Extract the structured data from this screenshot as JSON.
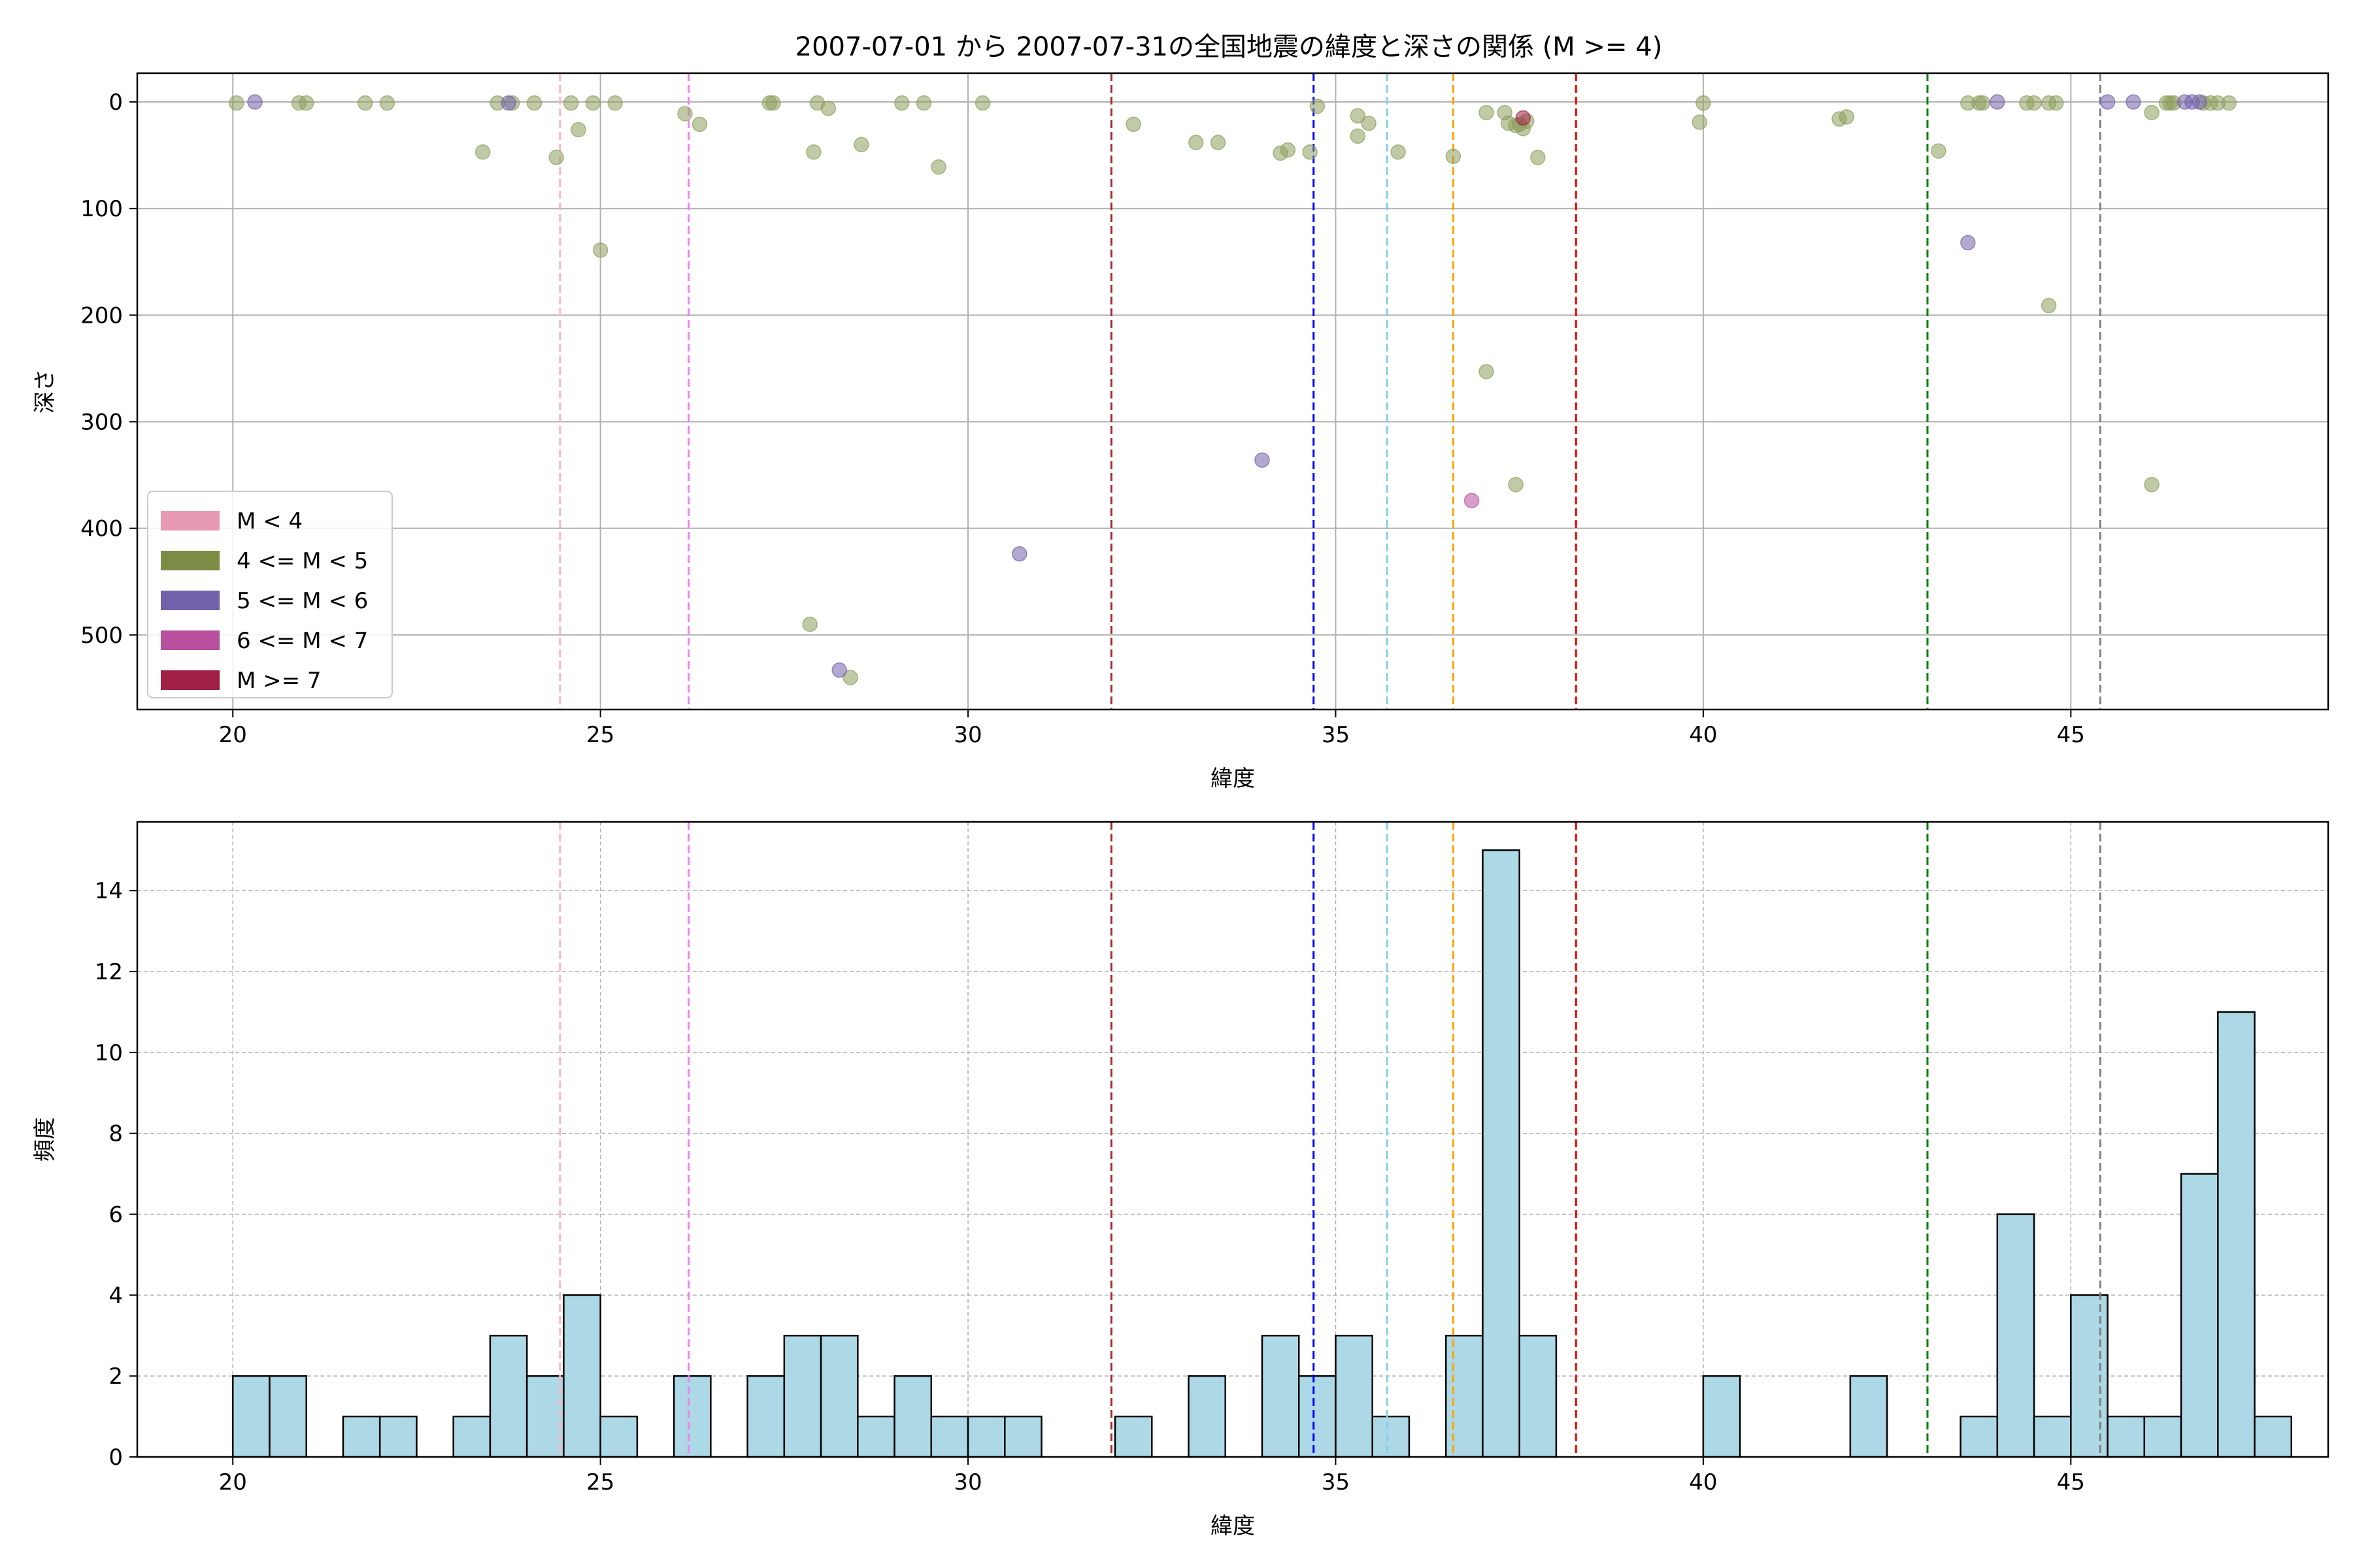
{
  "chart_data": [
    {
      "type": "scatter",
      "title": "2007-07-01 から 2007-07-31の全国地震の緯度と深さの関係 (M >= 4)",
      "xlabel": "緯度",
      "ylabel": "深さ",
      "xlim": [
        18.7,
        48.5
      ],
      "ylim": [
        570,
        -27
      ],
      "y_inverted": true,
      "xticks": [
        20,
        25,
        30,
        35,
        40,
        45
      ],
      "yticks": [
        0,
        100,
        200,
        300,
        400,
        500
      ],
      "grid": true,
      "legend_position": "lower-left",
      "legend": [
        {
          "label": "M < 4",
          "color": "#e89ab5"
        },
        {
          "label": "4 <= M < 5",
          "color": "#7c8c44"
        },
        {
          "label": "5 <= M < 6",
          "color": "#7260aa"
        },
        {
          "label": "6 <= M < 7",
          "color": "#b8509e"
        },
        {
          "label": "M >= 7",
          "color": "#a01f44"
        }
      ],
      "vlines": [
        {
          "x": 24.45,
          "color": "#ffb6c1"
        },
        {
          "x": 26.2,
          "color": "#ee82ee"
        },
        {
          "x": 31.95,
          "color": "#a52a2a"
        },
        {
          "x": 34.7,
          "color": "#0000ff"
        },
        {
          "x": 35.7,
          "color": "#87ceeb"
        },
        {
          "x": 36.6,
          "color": "#ffa500"
        },
        {
          "x": 38.27,
          "color": "#ff0000"
        },
        {
          "x": 43.05,
          "color": "#008000"
        },
        {
          "x": 45.4,
          "color": "#808080"
        }
      ],
      "series": [
        {
          "name": "4 <= M < 5",
          "color": "#8d9e5c",
          "points": [
            [
              20.05,
              1
            ],
            [
              20.9,
              1
            ],
            [
              21.0,
              1
            ],
            [
              21.8,
              1
            ],
            [
              22.1,
              1
            ],
            [
              23.4,
              47
            ],
            [
              23.6,
              1
            ],
            [
              23.8,
              1
            ],
            [
              24.1,
              1
            ],
            [
              24.4,
              52
            ],
            [
              24.6,
              1
            ],
            [
              24.7,
              26
            ],
            [
              24.9,
              1
            ],
            [
              25.0,
              139
            ],
            [
              25.2,
              1
            ],
            [
              26.15,
              11
            ],
            [
              26.35,
              21
            ],
            [
              27.3,
              1
            ],
            [
              27.35,
              1
            ],
            [
              27.85,
              490
            ],
            [
              27.9,
              47
            ],
            [
              27.95,
              1
            ],
            [
              28.1,
              6
            ],
            [
              28.4,
              540
            ],
            [
              28.55,
              40
            ],
            [
              29.1,
              1
            ],
            [
              29.4,
              1
            ],
            [
              29.6,
              61
            ],
            [
              30.2,
              1
            ],
            [
              32.25,
              21
            ],
            [
              33.1,
              38
            ],
            [
              33.4,
              38
            ],
            [
              34.25,
              48
            ],
            [
              34.35,
              45
            ],
            [
              34.65,
              47
            ],
            [
              34.75,
              4
            ],
            [
              35.3,
              13
            ],
            [
              35.3,
              32
            ],
            [
              35.45,
              20
            ],
            [
              35.85,
              47
            ],
            [
              36.6,
              51
            ],
            [
              37.05,
              10
            ],
            [
              37.05,
              253
            ],
            [
              37.3,
              10
            ],
            [
              37.35,
              20
            ],
            [
              37.45,
              22
            ],
            [
              37.5,
              21
            ],
            [
              37.55,
              25
            ],
            [
              37.6,
              18
            ],
            [
              37.45,
              359
            ],
            [
              37.75,
              52
            ],
            [
              39.95,
              19
            ],
            [
              40.0,
              1
            ],
            [
              41.85,
              16
            ],
            [
              41.95,
              14
            ],
            [
              43.2,
              46
            ],
            [
              43.6,
              1
            ],
            [
              43.75,
              1
            ],
            [
              43.8,
              1
            ],
            [
              44.4,
              1
            ],
            [
              44.5,
              1
            ],
            [
              44.7,
              1
            ],
            [
              44.7,
              191
            ],
            [
              44.8,
              1
            ],
            [
              46.1,
              10
            ],
            [
              46.1,
              359
            ],
            [
              46.3,
              1
            ],
            [
              46.35,
              1
            ],
            [
              46.4,
              1
            ],
            [
              46.8,
              1
            ],
            [
              46.9,
              1
            ],
            [
              47.0,
              1
            ],
            [
              47.15,
              1
            ]
          ]
        },
        {
          "name": "5 <= M < 6",
          "color": "#7260aa",
          "points": [
            [
              20.3,
              0
            ],
            [
              23.75,
              1
            ],
            [
              28.25,
              533
            ],
            [
              30.7,
              424
            ],
            [
              34.0,
              336
            ],
            [
              43.6,
              132
            ],
            [
              44.0,
              0
            ],
            [
              45.5,
              0
            ],
            [
              45.85,
              0
            ],
            [
              46.55,
              0
            ],
            [
              46.65,
              0
            ],
            [
              46.75,
              0
            ]
          ]
        },
        {
          "name": "6 <= M < 7",
          "color": "#b8509e",
          "points": [
            [
              36.85,
              374
            ]
          ]
        },
        {
          "name": "M >= 7",
          "color": "#a01f44",
          "points": [
            [
              37.55,
              15
            ]
          ]
        }
      ]
    },
    {
      "type": "bar",
      "xlabel": "緯度",
      "ylabel": "頻度",
      "xlim": [
        18.7,
        48.5
      ],
      "ylim": [
        0,
        15.7
      ],
      "xticks": [
        20,
        25,
        30,
        35,
        40,
        45
      ],
      "yticks": [
        0,
        2,
        4,
        6,
        8,
        10,
        12,
        14
      ],
      "grid": true,
      "bar_color": "#add8e6",
      "bin_start": 20.0,
      "bin_width": 0.5,
      "counts": [
        2,
        2,
        0,
        1,
        1,
        0,
        1,
        3,
        2,
        4,
        1,
        0,
        2,
        0,
        2,
        3,
        3,
        1,
        2,
        1,
        1,
        1,
        0,
        0,
        1,
        0,
        2,
        0,
        3,
        2,
        3,
        1,
        0,
        3,
        15,
        3,
        0,
        0,
        0,
        0,
        2,
        0,
        0,
        0,
        2,
        0,
        0,
        1,
        6,
        1,
        4,
        1,
        1,
        7,
        11,
        1
      ],
      "vlines": [
        {
          "x": 24.45,
          "color": "#ffb6c1"
        },
        {
          "x": 26.2,
          "color": "#ee82ee"
        },
        {
          "x": 31.95,
          "color": "#a52a2a"
        },
        {
          "x": 34.7,
          "color": "#0000ff"
        },
        {
          "x": 35.7,
          "color": "#87ceeb"
        },
        {
          "x": 36.6,
          "color": "#ffa500"
        },
        {
          "x": 38.27,
          "color": "#ff0000"
        },
        {
          "x": 43.05,
          "color": "#008000"
        },
        {
          "x": 45.4,
          "color": "#808080"
        }
      ]
    }
  ]
}
